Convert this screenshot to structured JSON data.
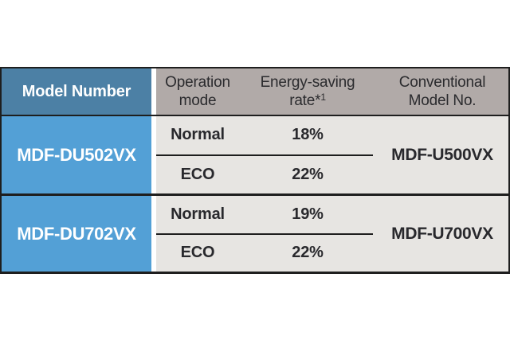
{
  "table": {
    "header": {
      "model_number": "Model Number",
      "operation_mode": [
        "Operation",
        "mode"
      ],
      "energy_saving": [
        "Energy-saving",
        "rate*"
      ],
      "energy_footnote_sup": "1",
      "conventional": [
        "Conventional",
        "Model No."
      ]
    },
    "groups": [
      {
        "model": "MDF-DU502VX",
        "rows": [
          {
            "mode": "Normal",
            "rate": "18%"
          },
          {
            "mode": "ECO",
            "rate": "22%"
          }
        ],
        "conventional": "MDF-U500VX"
      },
      {
        "model": "MDF-DU702VX",
        "rows": [
          {
            "mode": "Normal",
            "rate": "19%"
          },
          {
            "mode": "ECO",
            "rate": "22%"
          }
        ],
        "conventional": "MDF-U700VX"
      }
    ],
    "colors": {
      "header_blue": "#4c80a5",
      "row_blue": "#53a0d6",
      "header_gray": "#b1aaa8",
      "cell_gray": "#e7e5e2",
      "border_black": "#1e1e1e",
      "text_dark": "#29292d",
      "text_white": "#ffffff"
    }
  }
}
